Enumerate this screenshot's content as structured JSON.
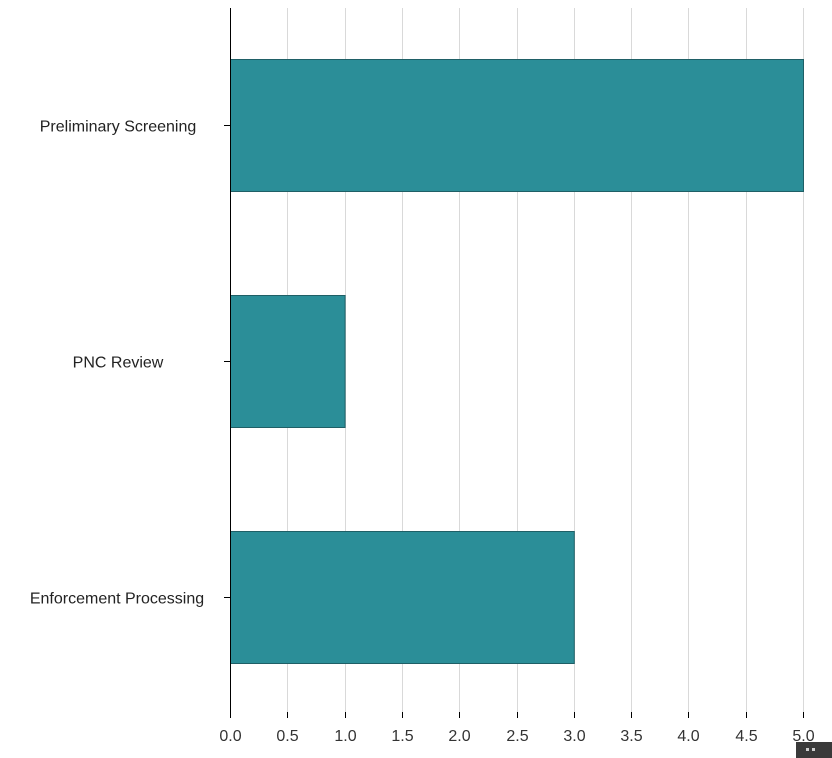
{
  "chart_data": {
    "type": "bar",
    "orientation": "horizontal",
    "categories": [
      "Preliminary Screening",
      "PNC Review",
      "Enforcement Processing"
    ],
    "values": [
      5,
      1,
      3
    ],
    "xlim": [
      0,
      5
    ],
    "xticks": [
      "0.0",
      "0.5",
      "1.0",
      "1.5",
      "2.0",
      "2.5",
      "3.0",
      "3.5",
      "4.0",
      "4.5",
      "5.0"
    ],
    "title": "",
    "xlabel": "",
    "ylabel": "",
    "grid": "vertical",
    "legend": "none",
    "bar_color": "#2b8e98",
    "bar_edge_color": "#1f5f66",
    "grid_color": "#d9d9d9",
    "axis_color": "#000000"
  }
}
